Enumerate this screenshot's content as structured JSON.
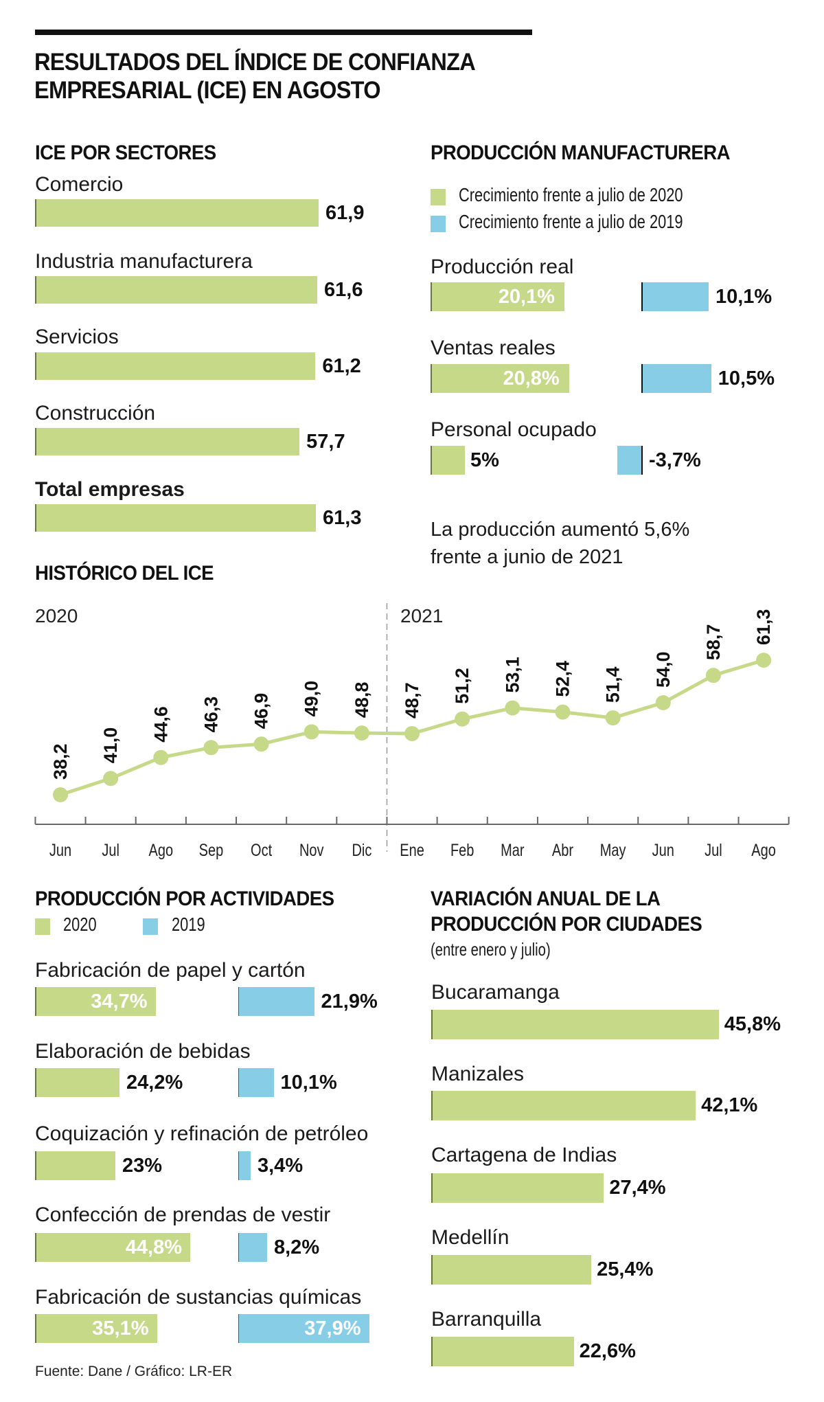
{
  "header": {
    "title_line1": "RESULTADOS DEL ÍNDICE DE CONFIANZA",
    "title_line2": "EMPRESARIAL (ICE) EN AGOSTO"
  },
  "colors": {
    "green": "#c5d989",
    "blue": "#87cde6",
    "text": "#111111"
  },
  "chart_data": [
    {
      "id": "ice_por_sectores",
      "type": "bar",
      "title": "ICE POR SECTORES",
      "orientation": "horizontal",
      "categories": [
        "Comercio",
        "Industria manufacturera",
        "Servicios",
        "Construcción",
        "Total empresas"
      ],
      "values": [
        61.9,
        61.6,
        61.2,
        57.7,
        61.3
      ],
      "labels": [
        "61,9",
        "61,6",
        "61,2",
        "57,7",
        "61,3"
      ],
      "highlight": "Total empresas"
    },
    {
      "id": "produccion_manufacturera",
      "type": "bar",
      "title": "PRODUCCIÓN MANUFACTURERA",
      "orientation": "horizontal",
      "legend": [
        "Crecimiento frente a julio de 2020",
        "Crecimiento frente a julio de 2019"
      ],
      "legend_position": "top-left",
      "categories": [
        "Producción real",
        "Ventas reales",
        "Personal ocupado"
      ],
      "series": [
        {
          "name": "Crecimiento frente a julio de 2020",
          "color": "#c5d989",
          "values": [
            20.1,
            20.8,
            5
          ],
          "labels": [
            "20,1%",
            "20,8%",
            "5%"
          ]
        },
        {
          "name": "Crecimiento frente a julio de 2019",
          "color": "#87cde6",
          "values": [
            10.1,
            10.5,
            -3.7
          ],
          "labels": [
            "10,1%",
            "10,5%",
            "-3,7%"
          ]
        }
      ],
      "note_line1": "La producción aumentó 5,6%",
      "note_line2": "frente a junio de 2021",
      "unit": "%"
    },
    {
      "id": "historico_ice",
      "type": "line",
      "title": "HISTÓRICO DEL ICE",
      "year_labels": [
        "2020",
        "2021"
      ],
      "x": [
        "Jun",
        "Jul",
        "Ago",
        "Sep",
        "Oct",
        "Nov",
        "Dic",
        "Ene",
        "Feb",
        "Mar",
        "Abr",
        "May",
        "Jun",
        "Jul",
        "Ago"
      ],
      "values": [
        38.2,
        41.0,
        44.6,
        46.3,
        46.9,
        49.0,
        48.8,
        48.7,
        51.2,
        53.1,
        52.4,
        51.4,
        54.0,
        58.7,
        61.3
      ],
      "labels": [
        "38,2",
        "41,0",
        "44,6",
        "46,3",
        "46,9",
        "49,0",
        "48,8",
        "48,7",
        "51,2",
        "53,1",
        "52,4",
        "51,4",
        "54,0",
        "58,7",
        "61,3"
      ],
      "xlabel": "",
      "ylabel": "",
      "grid": false,
      "year_divider_after": "Dic"
    },
    {
      "id": "produccion_por_actividades",
      "type": "bar",
      "title": "PRODUCCIÓN POR ACTIVIDADES",
      "orientation": "horizontal",
      "legend": [
        "2020",
        "2019"
      ],
      "legend_position": "top-left",
      "categories": [
        "Fabricación de papel y cartón",
        "Elaboración de bebidas",
        "Coquización y refinación de petróleo",
        "Confección de prendas de vestir",
        "Fabricación de sustancias químicas"
      ],
      "series": [
        {
          "name": "2020",
          "color": "#c5d989",
          "values": [
            34.7,
            24.2,
            23,
            44.8,
            35.1
          ],
          "labels": [
            "34,7%",
            "24,2%",
            "23%",
            "44,8%",
            "35,1%"
          ]
        },
        {
          "name": "2019",
          "color": "#87cde6",
          "values": [
            21.9,
            10.1,
            3.4,
            8.2,
            37.9
          ],
          "labels": [
            "21,9%",
            "10,1%",
            "3,4%",
            "8,2%",
            "37,9%"
          ]
        }
      ],
      "unit": "%"
    },
    {
      "id": "variacion_por_ciudades",
      "type": "bar",
      "title_line1": "VARIACIÓN ANUAL DE LA",
      "title_line2": "PRODUCCIÓN POR CIUDADES",
      "subtitle": "(entre enero y julio)",
      "orientation": "horizontal",
      "categories": [
        "Bucaramanga",
        "Manizales",
        "Cartagena de Indias",
        "Medellín",
        "Barranquilla"
      ],
      "values": [
        45.8,
        42.1,
        27.4,
        25.4,
        22.6
      ],
      "labels": [
        "45,8%",
        "42,1%",
        "27,4%",
        "25,4%",
        "22,6%"
      ],
      "unit": "%"
    }
  ],
  "footer": {
    "source": "Fuente: Dane / Gráfico: LR-ER"
  }
}
